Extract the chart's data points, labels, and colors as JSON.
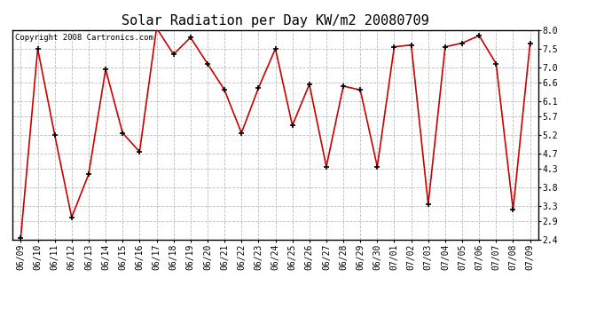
{
  "title": "Solar Radiation per Day KW/m2 20080709",
  "copyright_text": "Copyright 2008 Cartronics.com",
  "dates": [
    "06/09",
    "06/10",
    "06/11",
    "06/12",
    "06/13",
    "06/14",
    "06/15",
    "06/16",
    "06/17",
    "06/18",
    "06/19",
    "06/20",
    "06/21",
    "06/22",
    "06/23",
    "06/24",
    "06/25",
    "06/26",
    "06/27",
    "06/28",
    "06/29",
    "06/30",
    "07/01",
    "07/02",
    "07/03",
    "07/04",
    "07/05",
    "07/06",
    "07/07",
    "07/08",
    "07/09"
  ],
  "values": [
    2.45,
    7.5,
    5.2,
    3.0,
    4.15,
    6.95,
    5.25,
    4.75,
    8.05,
    7.35,
    7.8,
    7.1,
    6.4,
    5.25,
    6.45,
    7.5,
    5.45,
    6.55,
    4.35,
    6.5,
    6.4,
    4.35,
    7.55,
    7.6,
    3.35,
    7.55,
    7.65,
    7.85,
    7.1,
    3.2,
    7.65
  ],
  "line_color": "#cc0000",
  "marker_color": "#000000",
  "background_color": "#ffffff",
  "grid_color": "#bbbbbb",
  "ylim_min": 2.4,
  "ylim_max": 8.0,
  "yticks": [
    2.4,
    2.9,
    3.3,
    3.8,
    4.3,
    4.7,
    5.2,
    5.7,
    6.1,
    6.6,
    7.0,
    7.5,
    8.0
  ],
  "title_fontsize": 11,
  "copyright_fontsize": 6.5,
  "tick_fontsize": 7,
  "fig_width": 6.9,
  "fig_height": 3.75,
  "dpi": 100
}
